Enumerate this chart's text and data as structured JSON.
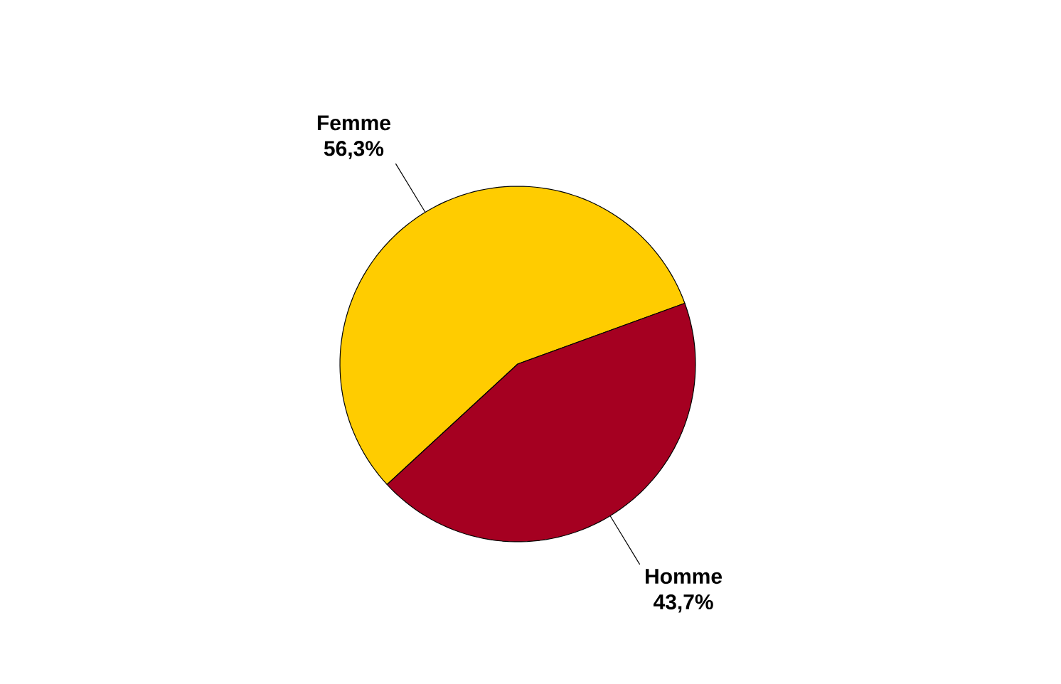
{
  "chart_data": {
    "type": "pie",
    "categories": [
      "Femme",
      "Homme"
    ],
    "values": [
      56.3,
      43.7
    ],
    "colors": [
      "#ffcc00",
      "#a50021"
    ],
    "value_labels": [
      "56,3%",
      "43,7%"
    ]
  }
}
